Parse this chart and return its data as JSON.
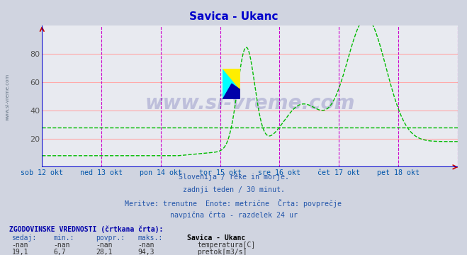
{
  "title": "Savica - Ukanc",
  "title_color": "#0000cc",
  "bg_color": "#d0d4e0",
  "plot_bg_color": "#e8eaf0",
  "x_label_color": "#0055aa",
  "y_label_color": "#555555",
  "grid_h_color": "#ffaaaa",
  "grid_v_color": "#cc00cc",
  "axis_color": "#0000cc",
  "flow_line_color": "#00bb00",
  "avg_line_color": "#00bb00",
  "ylim": [
    0,
    100
  ],
  "yticks": [
    20,
    40,
    60,
    80
  ],
  "x_labels": [
    "sob 12 okt",
    "ned 13 okt",
    "pon 14 okt",
    "tor 15 okt",
    "sre 16 okt",
    "čet 17 okt",
    "pet 18 okt"
  ],
  "n_points": 336,
  "avg_flow": 28.1,
  "subtitle_lines": [
    "Slovenija / reke in morje.",
    "zadnji teden / 30 minut.",
    "Meritve: trenutne  Enote: metrične  Črta: povprečje",
    "navpična črta - razdelek 24 ur"
  ],
  "table_header": "ZGODOVINSKE VREDNOSTI (črtkana črta):",
  "col_headers": [
    "sedaj:",
    "min.:",
    "povpr.:",
    "maks.:",
    "Savica - Ukanc"
  ],
  "row1": [
    "-nan",
    "-nan",
    "-nan",
    "-nan",
    "temperatura[C]"
  ],
  "row2": [
    "19,1",
    "6,7",
    "28,1",
    "94,3",
    "pretok[m3/s]"
  ],
  "row1_color": "#cc0000",
  "row2_color": "#00aa00",
  "watermark": "www.si-vreme.com",
  "watermark_color": "#000080",
  "watermark_alpha": 0.18,
  "side_text": "www.si-vreme.com"
}
